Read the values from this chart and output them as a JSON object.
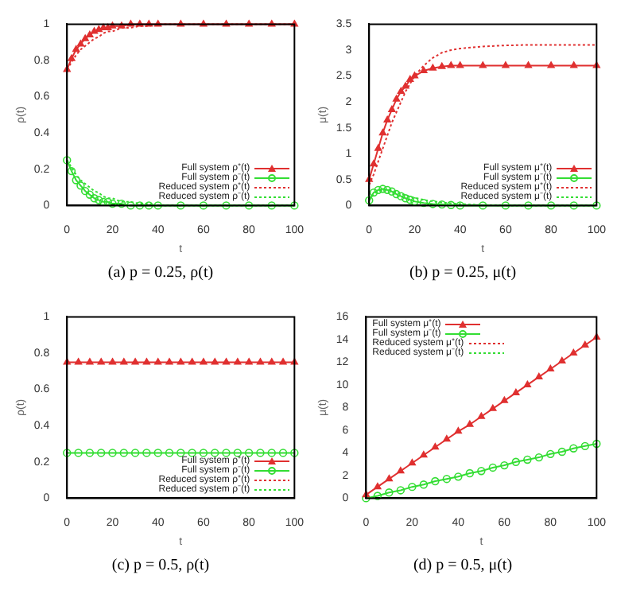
{
  "chart_data": [
    {
      "type": "line",
      "title": "(a) p = 0.25, ρ(t)",
      "xlabel": "t",
      "ylabel": "ρ(t)",
      "x": [
        0,
        2,
        4,
        6,
        8,
        10,
        12,
        14,
        16,
        18,
        20,
        24,
        28,
        32,
        36,
        40,
        50,
        60,
        70,
        80,
        90,
        100
      ],
      "xlim": [
        0,
        100
      ],
      "xticks": [
        0,
        20,
        40,
        60,
        80,
        100
      ],
      "ylim": [
        0,
        1
      ],
      "yticks": [
        0,
        0.2,
        0.4,
        0.6,
        0.8,
        1
      ],
      "grid": false,
      "legend": "bottom right",
      "series": [
        {
          "name": "Full system ρ⁺(t)",
          "color": "#e03030",
          "marker": "triangle",
          "line_style": "solid",
          "values": [
            0.75,
            0.81,
            0.86,
            0.89,
            0.92,
            0.94,
            0.96,
            0.97,
            0.98,
            0.98,
            0.99,
            0.99,
            1,
            1,
            1,
            1,
            1,
            1,
            1,
            1,
            1,
            1
          ]
        },
        {
          "name": "Full system ρ⁻(t)",
          "color": "#33dd33",
          "marker": "circle",
          "line_style": "solid",
          "values": [
            0.25,
            0.19,
            0.14,
            0.11,
            0.08,
            0.06,
            0.04,
            0.03,
            0.02,
            0.02,
            0.01,
            0.01,
            0,
            0,
            0,
            0,
            0,
            0,
            0,
            0,
            0,
            0
          ]
        },
        {
          "name": "Reduced system ρ⁺(t)",
          "color": "#e03030",
          "marker": "none",
          "line_style": "dotted",
          "values": [
            0.75,
            0.79,
            0.83,
            0.86,
            0.88,
            0.9,
            0.92,
            0.93,
            0.95,
            0.96,
            0.96,
            0.98,
            0.98,
            0.99,
            0.99,
            1,
            1,
            1,
            1,
            1,
            1,
            1
          ]
        },
        {
          "name": "Reduced system ρ⁻(t)",
          "color": "#33dd33",
          "marker": "none",
          "line_style": "dotted",
          "values": [
            0.25,
            0.21,
            0.17,
            0.14,
            0.12,
            0.1,
            0.08,
            0.07,
            0.05,
            0.04,
            0.04,
            0.02,
            0.02,
            0.01,
            0.01,
            0,
            0,
            0,
            0,
            0,
            0,
            0
          ]
        }
      ]
    },
    {
      "type": "line",
      "title": "(b) p = 0.25, μ(t)",
      "xlabel": "t",
      "ylabel": "μ(t)",
      "x": [
        0,
        2,
        4,
        6,
        8,
        10,
        12,
        14,
        16,
        18,
        20,
        24,
        28,
        32,
        36,
        40,
        50,
        60,
        70,
        80,
        90,
        100
      ],
      "xlim": [
        0,
        100
      ],
      "xticks": [
        0,
        20,
        40,
        60,
        80,
        100
      ],
      "ylim": [
        0,
        3.5
      ],
      "yticks": [
        0,
        0.5,
        1,
        1.5,
        2,
        2.5,
        3,
        3.5
      ],
      "grid": false,
      "legend": "bottom right",
      "series": [
        {
          "name": "Full system μ⁺(t)",
          "color": "#e03030",
          "marker": "triangle",
          "line_style": "solid",
          "values": [
            0.5,
            0.8,
            1.1,
            1.4,
            1.65,
            1.85,
            2.05,
            2.2,
            2.3,
            2.43,
            2.5,
            2.6,
            2.65,
            2.68,
            2.7,
            2.7,
            2.7,
            2.7,
            2.7,
            2.7,
            2.7,
            2.7
          ]
        },
        {
          "name": "Full system μ⁻(t)",
          "color": "#33dd33",
          "marker": "circle",
          "line_style": "solid",
          "values": [
            0.1,
            0.25,
            0.3,
            0.32,
            0.3,
            0.27,
            0.22,
            0.18,
            0.14,
            0.11,
            0.08,
            0.05,
            0.03,
            0.02,
            0.01,
            0,
            0,
            0,
            0,
            0,
            0,
            0
          ]
        },
        {
          "name": "Reduced system μ⁺(t)",
          "color": "#e03030",
          "marker": "none",
          "line_style": "dotted",
          "values": [
            0.4,
            0.6,
            0.85,
            1.1,
            1.35,
            1.6,
            1.8,
            2.0,
            2.2,
            2.35,
            2.5,
            2.7,
            2.85,
            2.95,
            3.0,
            3.03,
            3.07,
            3.09,
            3.1,
            3.1,
            3.1,
            3.1
          ]
        },
        {
          "name": "Reduced system μ⁻(t)",
          "color": "#33dd33",
          "marker": "none",
          "line_style": "dotted",
          "values": [
            0.1,
            0.22,
            0.28,
            0.3,
            0.3,
            0.29,
            0.26,
            0.23,
            0.2,
            0.17,
            0.15,
            0.11,
            0.08,
            0.06,
            0.04,
            0.03,
            0.01,
            0,
            0,
            0,
            0,
            0
          ]
        }
      ]
    },
    {
      "type": "line",
      "title": "(c) p = 0.5, ρ(t)",
      "xlabel": "t",
      "ylabel": "ρ(t)",
      "x": [
        0,
        5,
        10,
        15,
        20,
        25,
        30,
        35,
        40,
        45,
        50,
        55,
        60,
        65,
        70,
        75,
        80,
        85,
        90,
        95,
        100
      ],
      "xlim": [
        0,
        100
      ],
      "xticks": [
        0,
        20,
        40,
        60,
        80,
        100
      ],
      "ylim": [
        0,
        1
      ],
      "yticks": [
        0,
        0.2,
        0.4,
        0.6,
        0.8,
        1
      ],
      "grid": false,
      "legend": "bottom right",
      "series": [
        {
          "name": "Full system ρ⁺(t)",
          "color": "#e03030",
          "marker": "triangle",
          "line_style": "solid",
          "values": [
            0.75,
            0.75,
            0.75,
            0.75,
            0.75,
            0.75,
            0.75,
            0.75,
            0.75,
            0.75,
            0.75,
            0.75,
            0.75,
            0.75,
            0.75,
            0.75,
            0.75,
            0.75,
            0.75,
            0.75,
            0.75
          ]
        },
        {
          "name": "Full system ρ⁻(t)",
          "color": "#33dd33",
          "marker": "circle",
          "line_style": "solid",
          "values": [
            0.25,
            0.25,
            0.25,
            0.25,
            0.25,
            0.25,
            0.25,
            0.25,
            0.25,
            0.25,
            0.25,
            0.25,
            0.25,
            0.25,
            0.25,
            0.25,
            0.25,
            0.25,
            0.25,
            0.25,
            0.25
          ]
        },
        {
          "name": "Reduced system ρ⁺(t)",
          "color": "#e03030",
          "marker": "none",
          "line_style": "dotted",
          "values": [
            null,
            null,
            null,
            null,
            null,
            null,
            null,
            null,
            null,
            null,
            null,
            null,
            null,
            null,
            null,
            null,
            null,
            null,
            null,
            null,
            null
          ]
        },
        {
          "name": "Reduced system ρ⁻(t)",
          "color": "#33dd33",
          "marker": "none",
          "line_style": "dotted",
          "values": [
            null,
            null,
            null,
            null,
            null,
            null,
            null,
            null,
            null,
            null,
            null,
            null,
            null,
            null,
            null,
            null,
            null,
            null,
            null,
            null,
            null
          ]
        }
      ]
    },
    {
      "type": "line",
      "title": "(d) p = 0.5, μ(t)",
      "xlabel": "t",
      "ylabel": "μ(t)",
      "x": [
        0,
        5,
        10,
        15,
        20,
        25,
        30,
        35,
        40,
        45,
        50,
        55,
        60,
        65,
        70,
        75,
        80,
        85,
        90,
        95,
        100
      ],
      "xlim": [
        0,
        100
      ],
      "xticks": [
        0,
        20,
        40,
        60,
        80,
        100
      ],
      "ylim": [
        0,
        16
      ],
      "yticks": [
        0,
        2,
        4,
        6,
        8,
        10,
        12,
        14,
        16
      ],
      "grid": false,
      "legend": "top left",
      "series": [
        {
          "name": "Full system μ⁺(t)",
          "color": "#e03030",
          "marker": "triangle",
          "line_style": "solid",
          "values": [
            0.3,
            1.0,
            1.7,
            2.4,
            3.1,
            3.8,
            4.5,
            5.2,
            5.9,
            6.5,
            7.2,
            7.9,
            8.6,
            9.3,
            10.0,
            10.7,
            11.4,
            12.1,
            12.8,
            13.5,
            14.2
          ]
        },
        {
          "name": "Full system μ⁻(t)",
          "color": "#33dd33",
          "marker": "circle",
          "line_style": "solid",
          "values": [
            0,
            0.2,
            0.5,
            0.7,
            1.0,
            1.2,
            1.5,
            1.7,
            1.9,
            2.2,
            2.4,
            2.7,
            2.9,
            3.2,
            3.4,
            3.6,
            3.9,
            4.1,
            4.4,
            4.6,
            4.8
          ]
        },
        {
          "name": "Reduced system μ⁺(t)",
          "color": "#e03030",
          "marker": "none",
          "line_style": "dotted",
          "values": [
            null,
            null,
            null,
            null,
            null,
            null,
            null,
            null,
            null,
            null,
            null,
            null,
            null,
            null,
            null,
            null,
            null,
            null,
            null,
            null,
            null
          ]
        },
        {
          "name": "Reduced system μ⁻(t)",
          "color": "#33dd33",
          "marker": "none",
          "line_style": "dotted",
          "values": [
            null,
            null,
            null,
            null,
            null,
            null,
            null,
            null,
            null,
            null,
            null,
            null,
            null,
            null,
            null,
            null,
            null,
            null,
            null,
            null,
            null
          ]
        }
      ]
    }
  ]
}
